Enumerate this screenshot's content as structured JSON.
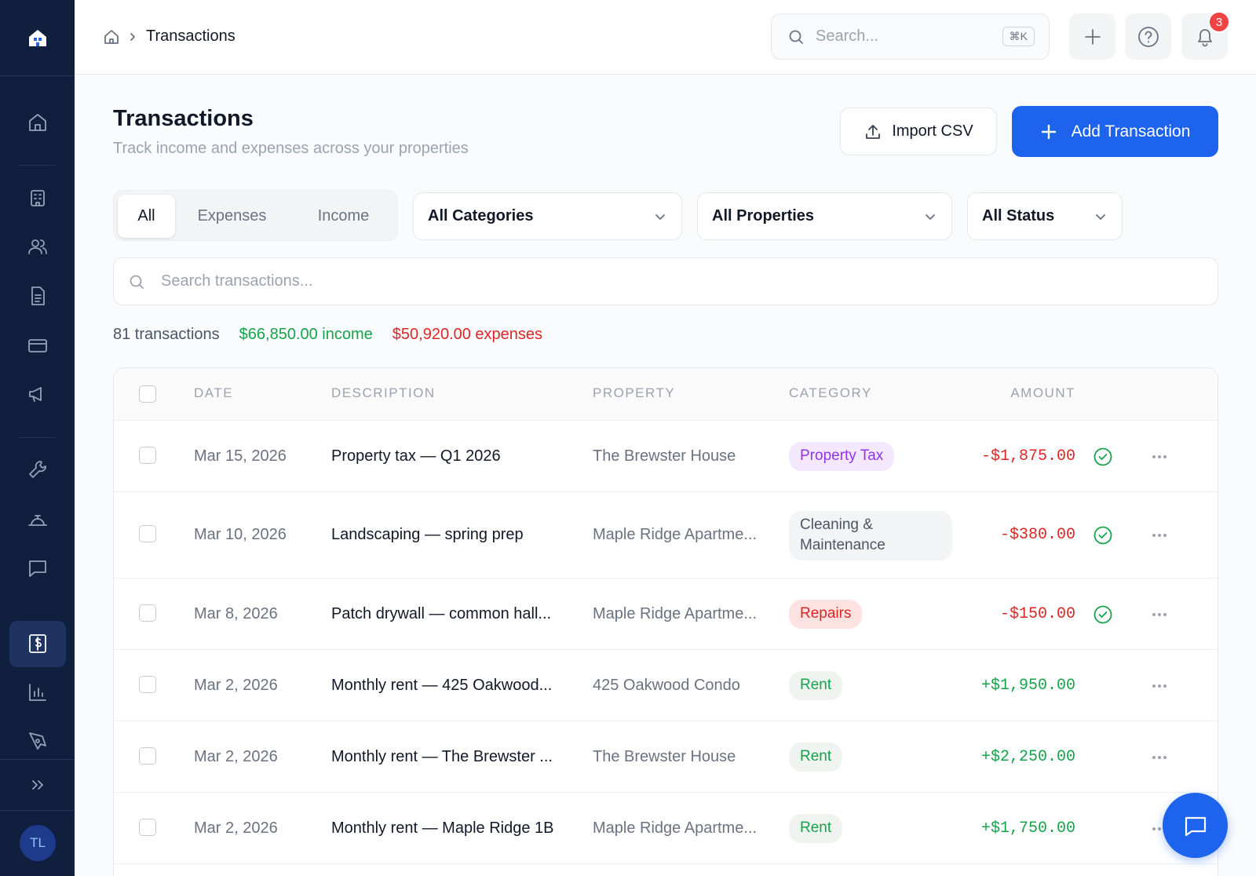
{
  "sidebar": {
    "user_initials": "TL"
  },
  "topbar": {
    "breadcrumb": "Transactions",
    "search_placeholder": "Search...",
    "shortcut": "⌘K",
    "notification_count": "3"
  },
  "header": {
    "title": "Transactions",
    "subtitle": "Track income and expenses across your properties",
    "import_button": "Import CSV",
    "add_button": "Add Transaction"
  },
  "filters": {
    "tabs": [
      "All",
      "Expenses",
      "Income"
    ],
    "dropdowns": [
      "All Categories",
      "All Properties",
      "All Status"
    ],
    "search_placeholder": "Search transactions..."
  },
  "summary": {
    "count": "81 transactions",
    "income": "$66,850.00 income",
    "expenses": "$50,920.00 expenses"
  },
  "table": {
    "columns": [
      "DATE",
      "DESCRIPTION",
      "PROPERTY",
      "CATEGORY",
      "AMOUNT"
    ],
    "rows": [
      [
        "Mar 15, 2026",
        "Property tax — Q1 2026",
        "The Brewster House",
        "Property Tax",
        "-$1,875.00"
      ],
      [
        "Mar 10, 2026",
        "Landscaping — spring prep",
        "Maple Ridge Apartme...",
        "Cleaning & Maintenance",
        "-$380.00"
      ],
      [
        "Mar 8, 2026",
        "Patch drywall — common hall...",
        "Maple Ridge Apartme...",
        "Repairs",
        "-$150.00"
      ],
      [
        "Mar 2, 2026",
        "Monthly rent — 425 Oakwood...",
        "425 Oakwood Condo",
        "Rent",
        "+$1,950.00"
      ],
      [
        "Mar 2, 2026",
        "Monthly rent — The Brewster ...",
        "The Brewster House",
        "Rent",
        "+$2,250.00"
      ],
      [
        "Mar 2, 2026",
        "Monthly rent — Maple Ridge 1B",
        "Maple Ridge Apartme...",
        "Rent",
        "+$1,750.00"
      ]
    ]
  }
}
